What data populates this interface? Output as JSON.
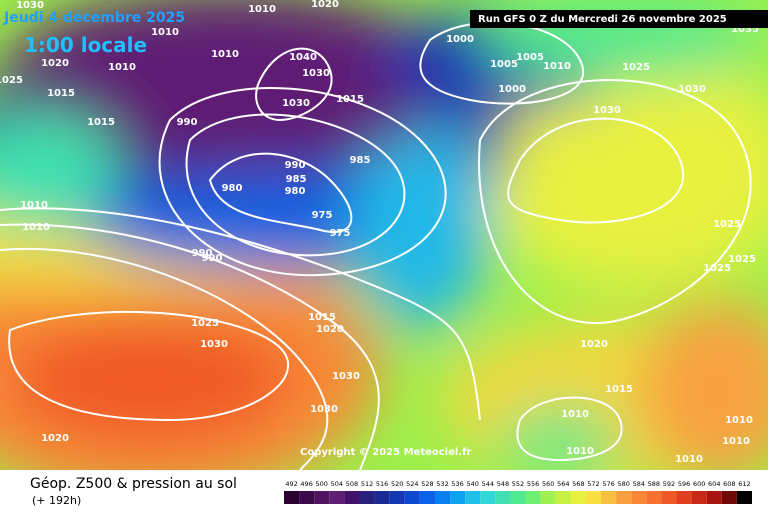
{
  "header": {
    "date": "Jeudi 4 décembre 2025",
    "time": "1:00 locale",
    "run": "Run GFS 0 Z du Mercredi 26 novembre 2025"
  },
  "copyright": "Copyright © 2025 Meteociel.fr",
  "footer": {
    "title": "Géop. Z500 & pression au sol",
    "lead": "(+ 192h)"
  },
  "pressure_labels": [
    "1030",
    "1010",
    "1020",
    "1010",
    "1020",
    "1010",
    "1010",
    "1040",
    "1030",
    "1030",
    "1025",
    "1015",
    "1015",
    "990",
    "1000",
    "1005",
    "1005",
    "1010",
    "1000",
    "1025",
    "1030",
    "1030",
    "1035",
    "1015",
    "985",
    "990",
    "985",
    "980",
    "980",
    "975",
    "975",
    "1010",
    "1010",
    "990",
    "990",
    "1025",
    "1025",
    "1025",
    "1015",
    "1020",
    "1025",
    "1030",
    "1020",
    "1030",
    "1015",
    "1030",
    "1010",
    "1010",
    "1010",
    "1020",
    "1010",
    "1010"
  ],
  "legend": {
    "values": [
      492,
      496,
      500,
      504,
      508,
      512,
      516,
      520,
      524,
      528,
      532,
      536,
      540,
      544,
      548,
      552,
      556,
      560,
      564,
      568,
      572,
      576,
      580,
      584,
      588,
      592,
      596,
      600,
      604,
      608,
      612
    ],
    "colors": [
      "#2a0030",
      "#3c0a4a",
      "#4e1460",
      "#5e1e74",
      "#40106a",
      "#28207a",
      "#1c2a96",
      "#1438b4",
      "#0c48d0",
      "#0a60e6",
      "#0a80f0",
      "#10a0f0",
      "#20c0e8",
      "#30d8d8",
      "#40e0b0",
      "#50e890",
      "#70f070",
      "#a0f050",
      "#c8f040",
      "#e8f040",
      "#f8e040",
      "#f8c040",
      "#f8a040",
      "#f88838",
      "#f87030",
      "#f05828",
      "#e04020",
      "#c82818",
      "#a81410",
      "#700808",
      "#000000"
    ]
  }
}
